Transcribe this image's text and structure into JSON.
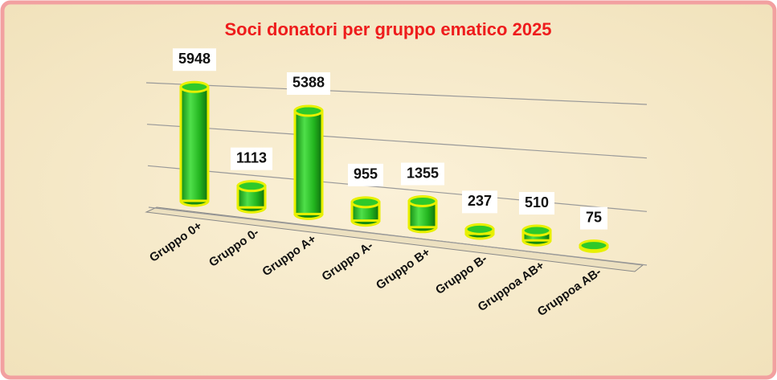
{
  "chart_data": {
    "type": "cylinder_bar",
    "title": "Soci donatori per gruppo ematico 2025",
    "categories": [
      "Gruppo 0+",
      "Gruppo 0-",
      "Gruppo A+",
      "Gruppo A-",
      "Gruppo B+",
      "Gruppo B-",
      "Gruppoa AB+",
      "Gruppoa AB-"
    ],
    "values": [
      5948,
      1113,
      5388,
      955,
      1355,
      237,
      510,
      75
    ],
    "color": "#22b41e",
    "edge_color": "#e8f000",
    "ylim": [
      0,
      6000
    ],
    "yticks": [
      0,
      2000,
      4000,
      6000
    ],
    "grid": true
  }
}
